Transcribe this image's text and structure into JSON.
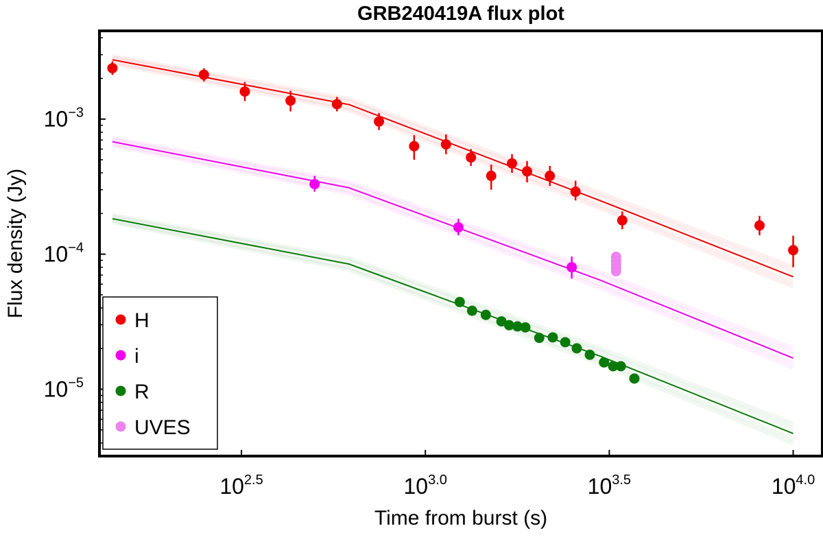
{
  "chart_data": {
    "type": "scatter",
    "title": "GRB240419A flux plot",
    "xlabel": "Time from burst (s)",
    "ylabel": "Flux density (Jy)",
    "x_scale": "log",
    "y_scale": "log",
    "xlim": [
      130,
      12000
    ],
    "ylim": [
      3.2e-06,
      0.0045
    ],
    "x_ticks": [
      {
        "value": 316.2,
        "base": "10",
        "exp": "2.5"
      },
      {
        "value": 1000,
        "base": "10",
        "exp": "3.0"
      },
      {
        "value": 3162.3,
        "base": "10",
        "exp": "3.5"
      },
      {
        "value": 10000,
        "base": "10",
        "exp": "4.0"
      }
    ],
    "y_ticks": [
      {
        "value": 1e-05,
        "base": "10",
        "exp": "−5"
      },
      {
        "value": 0.0001,
        "base": "10",
        "exp": "−4"
      },
      {
        "value": 0.001,
        "base": "10",
        "exp": "−3"
      }
    ],
    "grid": false,
    "legend_position": "bottom-left",
    "series": [
      {
        "name": "H",
        "color": "#ee0000",
        "points": [
          {
            "x": 141,
            "y": 0.00238,
            "ylo": 0.00212,
            "yhi": 0.00268
          },
          {
            "x": 250,
            "y": 0.00213,
            "ylo": 0.0019,
            "yhi": 0.00238
          },
          {
            "x": 323,
            "y": 0.0016,
            "ylo": 0.00136,
            "yhi": 0.00188
          },
          {
            "x": 430,
            "y": 0.00137,
            "ylo": 0.00114,
            "yhi": 0.00162
          },
          {
            "x": 575,
            "y": 0.00129,
            "ylo": 0.00114,
            "yhi": 0.00146
          },
          {
            "x": 748,
            "y": 0.00096,
            "ylo": 0.00083,
            "yhi": 0.00111
          },
          {
            "x": 932,
            "y": 0.00063,
            "ylo": 0.0005,
            "yhi": 0.00076
          },
          {
            "x": 1138,
            "y": 0.00065,
            "ylo": 0.00055,
            "yhi": 0.00077
          },
          {
            "x": 1330,
            "y": 0.00052,
            "ylo": 0.00045,
            "yhi": 0.0006
          },
          {
            "x": 1510,
            "y": 0.00038,
            "ylo": 0.0003,
            "yhi": 0.00046
          },
          {
            "x": 1720,
            "y": 0.00047,
            "ylo": 0.0004,
            "yhi": 0.00055
          },
          {
            "x": 1890,
            "y": 0.00041,
            "ylo": 0.00034,
            "yhi": 0.00049
          },
          {
            "x": 2180,
            "y": 0.00038,
            "ylo": 0.00032,
            "yhi": 0.00045
          },
          {
            "x": 2560,
            "y": 0.00029,
            "ylo": 0.00025,
            "yhi": 0.00035
          },
          {
            "x": 3430,
            "y": 0.000178,
            "ylo": 0.000153,
            "yhi": 0.000207
          },
          {
            "x": 8100,
            "y": 0.000163,
            "ylo": 0.000138,
            "yhi": 0.000192
          },
          {
            "x": 10000,
            "y": 0.000107,
            "ylo": 8e-05,
            "yhi": 0.000137
          }
        ],
        "model": [
          [
            141,
            0.00275
          ],
          [
            620,
            0.00128
          ],
          [
            3000,
            0.000248
          ],
          [
            10000,
            6.8e-05
          ]
        ]
      },
      {
        "name": "i",
        "color": "#ee00ee",
        "points": [
          {
            "x": 500,
            "y": 0.00033,
            "ylo": 0.00029,
            "yhi": 0.00038
          },
          {
            "x": 1230,
            "y": 0.000158,
            "ylo": 0.000138,
            "yhi": 0.000183
          },
          {
            "x": 2500,
            "y": 8e-05,
            "ylo": 6.6e-05,
            "yhi": 9.6e-05
          }
        ],
        "model": [
          [
            141,
            0.00068
          ],
          [
            620,
            0.00031
          ],
          [
            3000,
            6.4e-05
          ],
          [
            10000,
            1.7e-05
          ]
        ]
      },
      {
        "name": "R",
        "color": "#0b7a0b",
        "points": [
          {
            "x": 1240,
            "y": 4.42e-05
          },
          {
            "x": 1340,
            "y": 3.81e-05
          },
          {
            "x": 1460,
            "y": 3.55e-05
          },
          {
            "x": 1610,
            "y": 3.18e-05
          },
          {
            "x": 1690,
            "y": 2.98e-05
          },
          {
            "x": 1780,
            "y": 2.92e-05
          },
          {
            "x": 1870,
            "y": 2.87e-05
          },
          {
            "x": 2040,
            "y": 2.4e-05
          },
          {
            "x": 2220,
            "y": 2.42e-05
          },
          {
            "x": 2400,
            "y": 2.23e-05
          },
          {
            "x": 2580,
            "y": 2.01e-05
          },
          {
            "x": 2800,
            "y": 1.8e-05
          },
          {
            "x": 3060,
            "y": 1.58e-05
          },
          {
            "x": 3240,
            "y": 1.48e-05
          },
          {
            "x": 3400,
            "y": 1.48e-05
          },
          {
            "x": 3700,
            "y": 1.2e-05
          }
        ],
        "model": [
          [
            141,
            0.000183
          ],
          [
            620,
            8.45e-05
          ],
          [
            3000,
            1.75e-05
          ],
          [
            10000,
            4.7e-06
          ]
        ]
      },
      {
        "name": "UVES",
        "color": "#ee82ee",
        "points": [
          {
            "x": 3300,
            "y": 9.55e-05
          },
          {
            "x": 3300,
            "y": 8.95e-05
          },
          {
            "x": 3300,
            "y": 8.4e-05
          },
          {
            "x": 3300,
            "y": 7.95e-05
          },
          {
            "x": 3300,
            "y": 7.48e-05
          }
        ]
      }
    ]
  }
}
